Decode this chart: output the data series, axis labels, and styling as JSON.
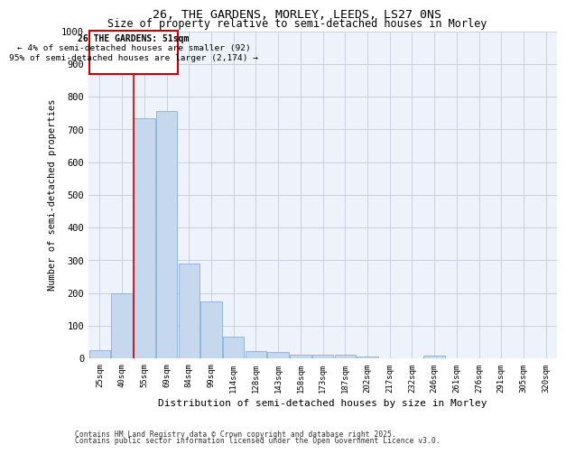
{
  "title_line1": "26, THE GARDENS, MORLEY, LEEDS, LS27 0NS",
  "title_line2": "Size of property relative to semi-detached houses in Morley",
  "xlabel": "Distribution of semi-detached houses by size in Morley",
  "ylabel": "Number of semi-detached properties",
  "footer_line1": "Contains HM Land Registry data © Crown copyright and database right 2025.",
  "footer_line2": "Contains public sector information licensed under the Open Government Licence v3.0.",
  "categories": [
    "25sqm",
    "40sqm",
    "55sqm",
    "69sqm",
    "84sqm",
    "99sqm",
    "114sqm",
    "128sqm",
    "143sqm",
    "158sqm",
    "173sqm",
    "187sqm",
    "202sqm",
    "217sqm",
    "232sqm",
    "246sqm",
    "261sqm",
    "276sqm",
    "291sqm",
    "305sqm",
    "320sqm"
  ],
  "values": [
    25,
    200,
    735,
    755,
    290,
    175,
    65,
    22,
    18,
    12,
    12,
    12,
    5,
    0,
    0,
    7,
    0,
    0,
    0,
    0,
    0
  ],
  "bar_color": "#c5d8ed",
  "bar_edge_color": "#89afd4",
  "grid_color": "#c8d0de",
  "annotation_title": "26 THE GARDENS: 51sqm",
  "annotation_line2": "← 4% of semi-detached houses are smaller (92)",
  "annotation_line3": "95% of semi-detached houses are larger (2,174) →",
  "annotation_box_color": "#cc0000",
  "red_line_x": 1.5,
  "ylim": [
    0,
    1000
  ],
  "yticks": [
    0,
    100,
    200,
    300,
    400,
    500,
    600,
    700,
    800,
    900,
    1000
  ],
  "background_color": "#eef2fa"
}
